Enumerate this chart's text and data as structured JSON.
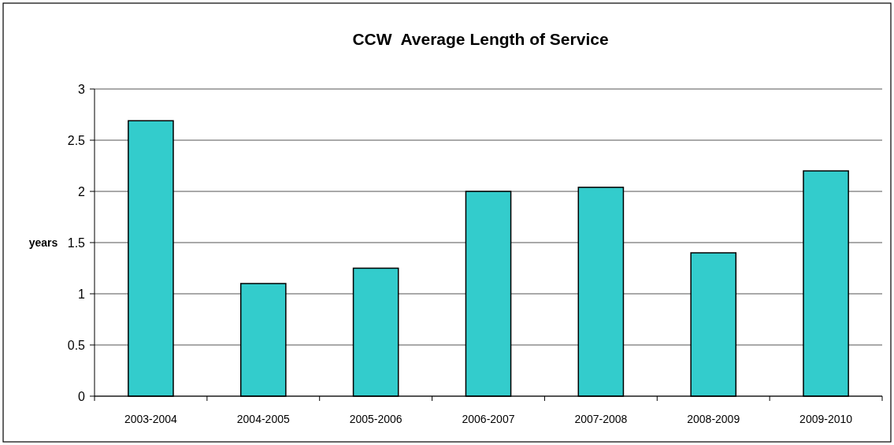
{
  "chart_data": {
    "type": "bar",
    "title": "CCW  Average Length of Service",
    "ylabel": "years",
    "categories": [
      "2003-2004",
      "2004-2005",
      "2005-2006",
      "2006-2007",
      "2007-2008",
      "2008-2009",
      "2009-2010"
    ],
    "values": [
      2.69,
      1.1,
      1.25,
      2,
      2.04,
      1.4,
      2.2
    ],
    "color": "#33cccc",
    "ylim": [
      0,
      3
    ],
    "yticks": [
      0,
      0.5,
      1,
      1.5,
      2,
      2.5,
      3
    ],
    "grid": "y"
  }
}
